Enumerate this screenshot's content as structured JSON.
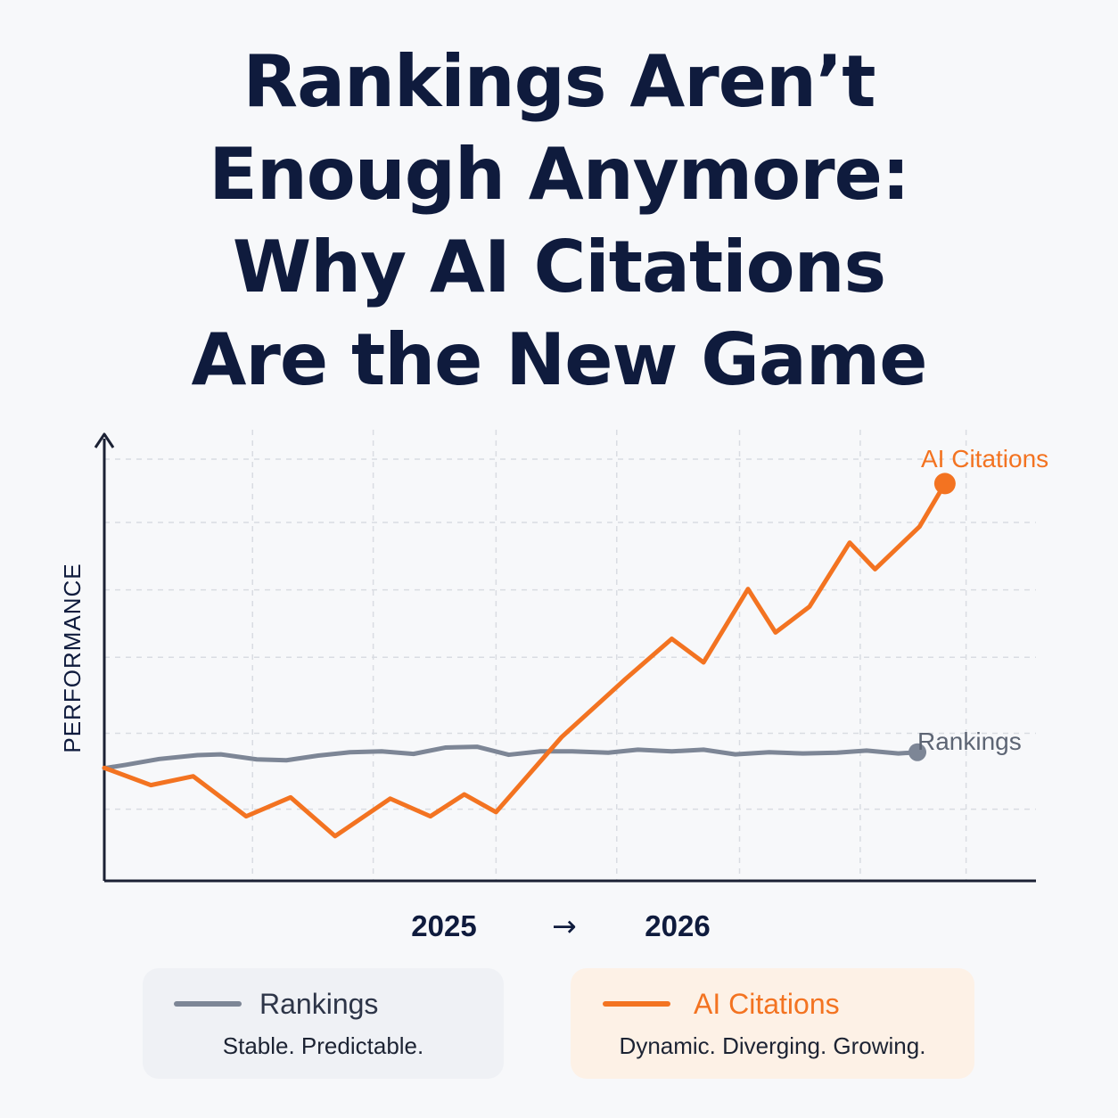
{
  "title": {
    "lines": [
      "Rankings Aren’t",
      "Enough Anymore:",
      "Why AI Citations",
      "Are the New Game"
    ]
  },
  "colors": {
    "rankings": "#7d8696",
    "ai_citations": "#f37321",
    "axis": "#1b2134",
    "grid": "#d9dce2",
    "text": "#0f1b3d"
  },
  "chart_data": {
    "type": "line",
    "ylabel": "PERFORMANCE",
    "xlabel": "",
    "x_labels": [
      "2025",
      "2026"
    ],
    "x_arrow": "→",
    "grid": true,
    "ylim": [
      0,
      10
    ],
    "series": [
      {
        "name": "Rankings",
        "color": "#7d8696",
        "values": [
          2.67,
          2.75,
          2.89,
          2.98,
          3.0,
          2.88,
          2.86,
          2.97,
          3.05,
          3.07,
          3.01,
          3.16,
          3.18,
          2.99,
          3.07,
          3.07,
          3.04,
          3.11,
          3.07,
          3.11,
          3.0,
          3.05,
          3.02,
          3.04,
          3.09,
          3.02,
          3.05
        ],
        "x": [
          0,
          1,
          2.6,
          4.4,
          5.5,
          7.2,
          8.6,
          10.1,
          11.6,
          13.1,
          14.6,
          16.1,
          17.6,
          19.1,
          20.6,
          22.1,
          23.8,
          25.2,
          26.8,
          28.3,
          29.8,
          31.4,
          33,
          34.6,
          36,
          37.5,
          38.4
        ]
      },
      {
        "name": "AI Citations",
        "color": "#f37321",
        "values": [
          2.68,
          2.27,
          2.48,
          1.53,
          1.98,
          1.06,
          1.95,
          1.53,
          2.05,
          1.63,
          3.41,
          4.78,
          5.74,
          5.18,
          6.92,
          5.89,
          6.5,
          8.02,
          7.39,
          8.4,
          9.42
        ],
        "x": [
          0,
          2.2,
          4.2,
          6.7,
          8.8,
          10.9,
          13.5,
          15.4,
          17.0,
          18.5,
          21.6,
          24.6,
          26.8,
          28.3,
          30.4,
          31.7,
          33.3,
          35.2,
          36.4,
          38.5,
          39.7
        ]
      }
    ],
    "end_labels": [
      "AI Citations",
      "Rankings"
    ],
    "legend": {
      "placement": "bottom",
      "items": [
        {
          "name": "Rankings",
          "description": "Stable. Predictable."
        },
        {
          "name": "AI Citations",
          "description": "Dynamic. Diverging. Growing."
        }
      ]
    }
  }
}
